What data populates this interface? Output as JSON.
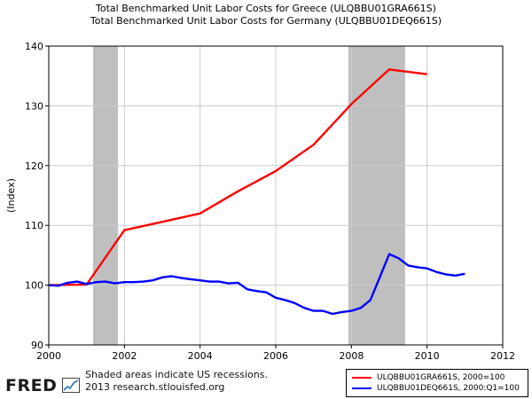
{
  "titles": {
    "line1": "Total Benchmarked Unit Labor Costs for Greece (ULQBBU01GRA661S)",
    "line2": "Total Benchmarked Unit Labor Costs for Germany (ULQBBU01DEQ661S)"
  },
  "footer": {
    "logo": "FRED",
    "note_line1": "Shaded areas indicate US recessions.",
    "note_line2": "2013 research.stlouisfed.org"
  },
  "colors": {
    "greece": "#ff0000",
    "germany": "#0000ff",
    "recession": "#bfbfbf",
    "grid": "#cccccc"
  },
  "chart_data": {
    "type": "line",
    "title": "Total Benchmarked Unit Labor Costs for Greece (ULQBBU01GRA661S) / Total Benchmarked Unit Labor Costs for Germany (ULQBBU01DEQ661S)",
    "xlabel": "",
    "ylabel": "(Index)",
    "xlim": [
      2000,
      2012
    ],
    "ylim": [
      90,
      140
    ],
    "x_ticks": [
      2000,
      2002,
      2004,
      2006,
      2008,
      2010,
      2012
    ],
    "x_tick_labels": [
      "2000",
      "2002",
      "2004",
      "2006",
      "2008",
      "2010",
      "2012"
    ],
    "y_ticks": [
      90,
      100,
      110,
      120,
      130,
      140
    ],
    "y_tick_labels": [
      "90",
      "100",
      "110",
      "120",
      "130",
      "140"
    ],
    "grid": true,
    "recessions": [
      [
        2001.17,
        2001.83
      ],
      [
        2007.92,
        2009.42
      ]
    ],
    "legend_position": "bottom-right",
    "series": [
      {
        "name": "ULQBBU01GRA661S, 2000=100",
        "color": "#ff0000",
        "x": [
          2000,
          2001,
          2002,
          2003,
          2004,
          2005,
          2006,
          2007,
          2008,
          2009,
          2010
        ],
        "y": [
          100,
          100.1,
          109.2,
          110.6,
          112.0,
          115.7,
          119.1,
          123.5,
          130.3,
          136.1,
          135.3
        ]
      },
      {
        "name": "ULQBBU01DEQ661S, 2000:Q1=100",
        "color": "#0000ff",
        "x": [
          2000,
          2000.25,
          2000.5,
          2000.75,
          2001,
          2001.25,
          2001.5,
          2001.75,
          2002,
          2002.25,
          2002.5,
          2002.75,
          2003,
          2003.25,
          2003.5,
          2003.75,
          2004,
          2004.25,
          2004.5,
          2004.75,
          2005,
          2005.25,
          2005.5,
          2005.75,
          2006,
          2006.25,
          2006.5,
          2006.75,
          2007,
          2007.25,
          2007.5,
          2007.75,
          2008,
          2008.25,
          2008.5,
          2008.75,
          2009,
          2009.25,
          2009.5,
          2009.75,
          2010,
          2010.25,
          2010.5,
          2010.75,
          2011
        ],
        "y": [
          100,
          99.9,
          100.4,
          100.6,
          100.2,
          100.5,
          100.6,
          100.3,
          100.5,
          100.5,
          100.6,
          100.8,
          101.3,
          101.5,
          101.2,
          101.0,
          100.8,
          100.6,
          100.6,
          100.3,
          100.4,
          99.3,
          99.0,
          98.8,
          97.9,
          97.5,
          97.0,
          96.2,
          95.7,
          95.7,
          95.2,
          95.5,
          95.7,
          96.2,
          97.5,
          101.3,
          105.2,
          104.5,
          103.3,
          103.0,
          102.8,
          102.2,
          101.8,
          101.6,
          101.9
        ]
      }
    ]
  }
}
